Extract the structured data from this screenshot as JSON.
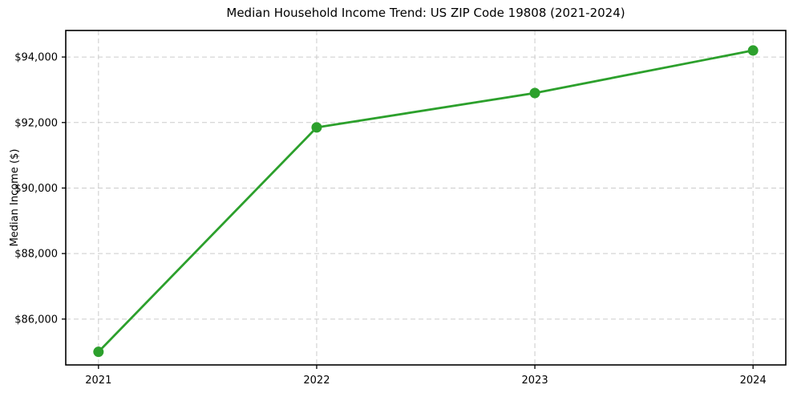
{
  "chart_data": {
    "type": "line",
    "title": "Median Household Income Trend: US ZIP Code 19808 (2021-2024)",
    "xlabel": "",
    "ylabel": "Median Income ($)",
    "x": [
      2021,
      2022,
      2023,
      2024
    ],
    "x_tick_labels": [
      "2021",
      "2022",
      "2023",
      "2024"
    ],
    "series": [
      {
        "name": "Median Household Income",
        "values": [
          85000,
          91850,
          92900,
          94200
        ]
      }
    ],
    "y_ticks": [
      86000,
      88000,
      90000,
      92000,
      94000
    ],
    "y_tick_labels": [
      "$86,000",
      "$88,000",
      "$90,000",
      "$92,000",
      "$94,000"
    ],
    "xlim": [
      2020.85,
      2024.15
    ],
    "ylim": [
      84600,
      94810
    ],
    "grid": true,
    "grid_style": "dashed",
    "legend": "none",
    "colors": {
      "line": "#2ca02c",
      "marker": "#2ca02c",
      "grid": "#cccccc",
      "frame": "#000000",
      "text": "#000000",
      "background": "#ffffff"
    }
  }
}
